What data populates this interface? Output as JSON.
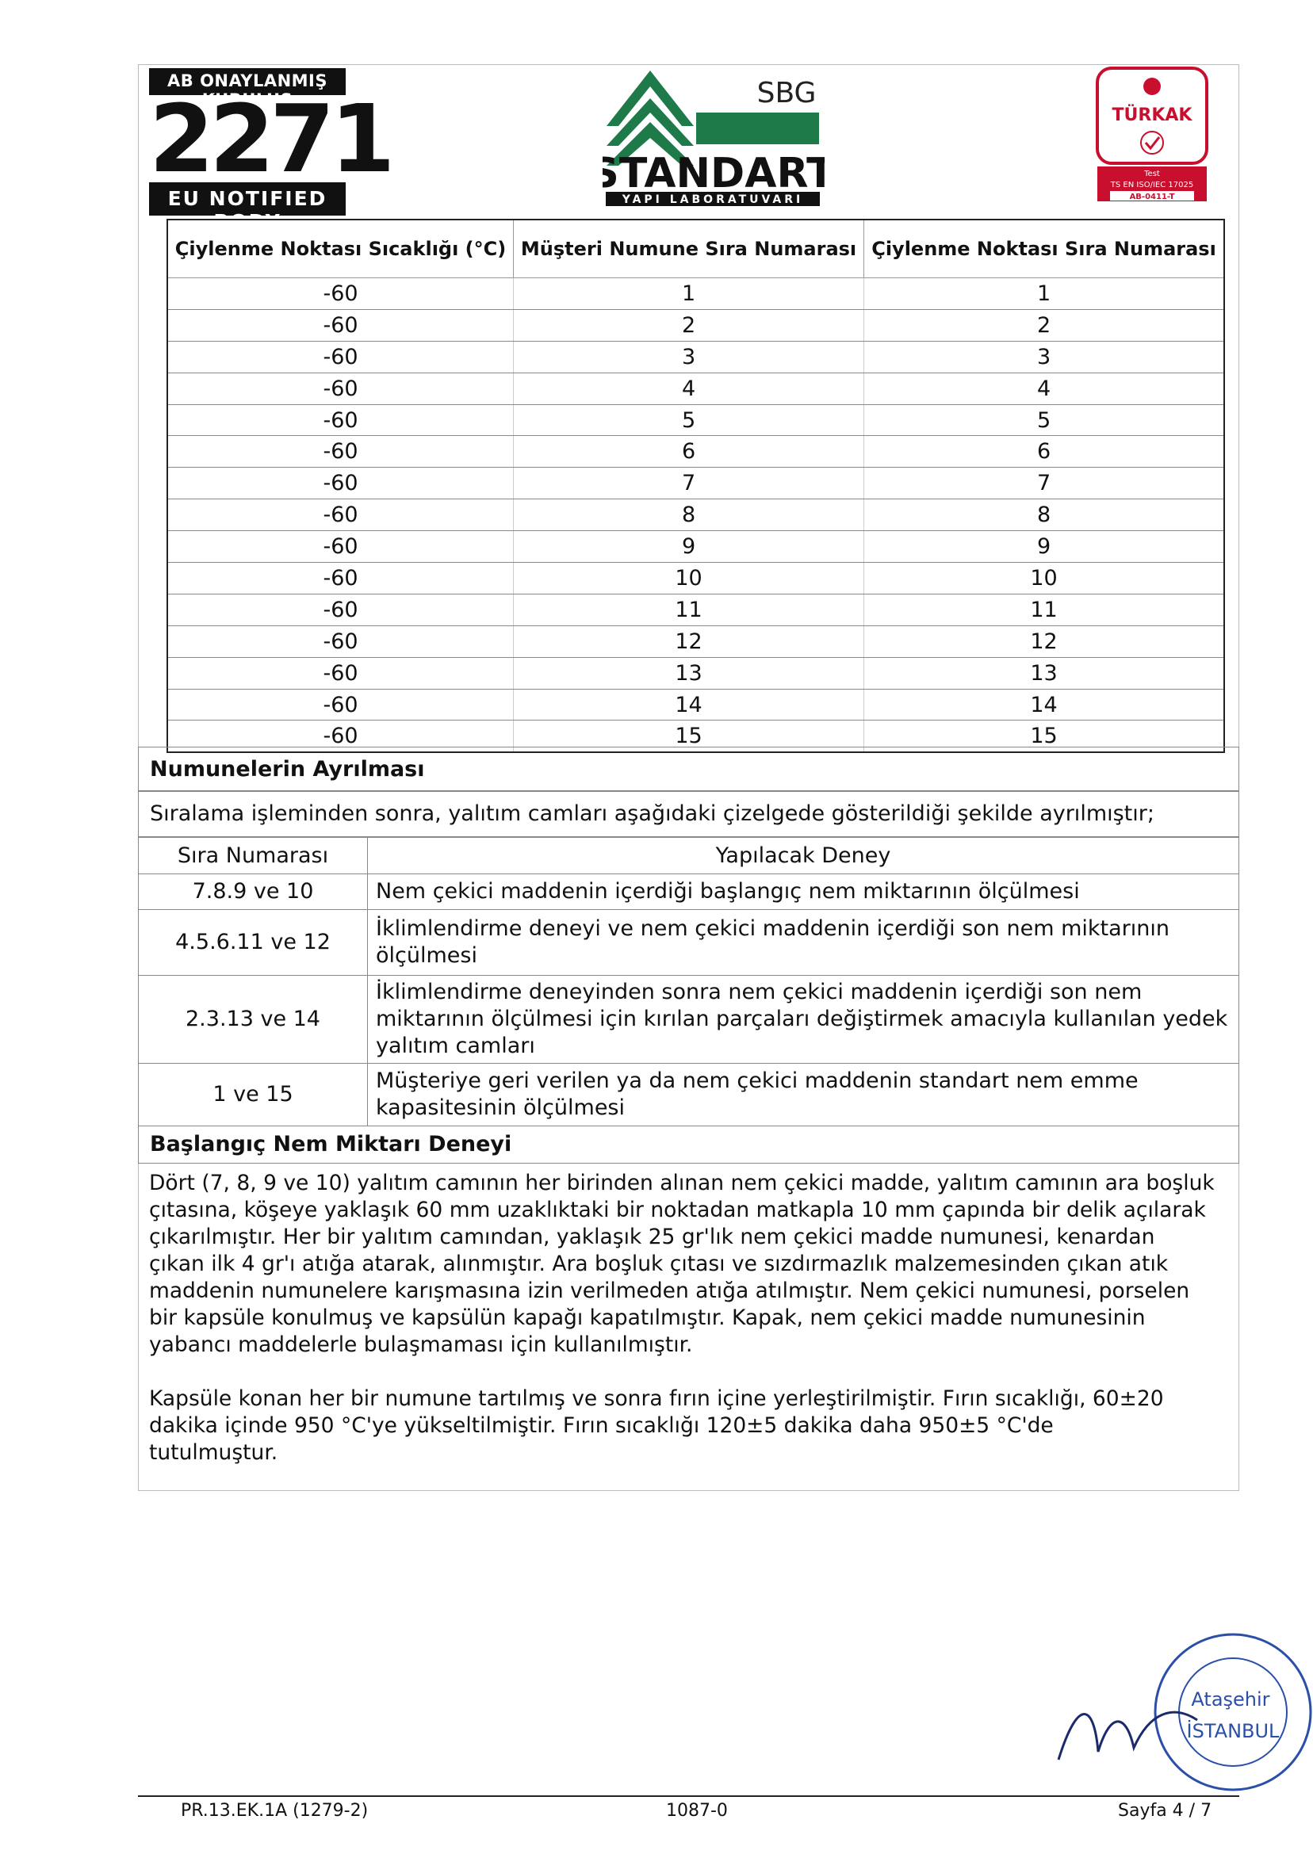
{
  "header": {
    "notified": {
      "top": "AB ONAYLANMIŞ KURULUŞ",
      "number": "2271",
      "bottom": "EU NOTIFIED BODY"
    },
    "lab": {
      "sbg": "SBG",
      "name": "STANDART",
      "sub": "YAPI LABORATUVARI"
    },
    "turkak": {
      "name": "TÜRKAK",
      "test": "Test",
      "standard": "TS EN ISO/IEC 17025",
      "code": "AB-0411-T"
    }
  },
  "table": {
    "headers": [
      "Çiylenme Noktası Sıcaklığı (°C)",
      "Müşteri Numune Sıra Numarası",
      "Çiylenme Noktası Sıra Numarası"
    ],
    "rows": [
      [
        "-60",
        "1",
        "1"
      ],
      [
        "-60",
        "2",
        "2"
      ],
      [
        "-60",
        "3",
        "3"
      ],
      [
        "-60",
        "4",
        "4"
      ],
      [
        "-60",
        "5",
        "5"
      ],
      [
        "-60",
        "6",
        "6"
      ],
      [
        "-60",
        "7",
        "7"
      ],
      [
        "-60",
        "8",
        "8"
      ],
      [
        "-60",
        "9",
        "9"
      ],
      [
        "-60",
        "10",
        "10"
      ],
      [
        "-60",
        "11",
        "11"
      ],
      [
        "-60",
        "12",
        "12"
      ],
      [
        "-60",
        "13",
        "13"
      ],
      [
        "-60",
        "14",
        "14"
      ],
      [
        "-60",
        "15",
        "15"
      ]
    ]
  },
  "separation": {
    "title": "Numunelerin Ayrılması",
    "intro": "Sıralama işleminden sonra, yalıtım camları aşağıdaki çizelgede gösterildiği şekilde ayrılmıştır;",
    "headers": [
      "Sıra Numarası",
      "Yapılacak Deney"
    ],
    "rows": [
      [
        "7.8.9 ve 10",
        "Nem çekici maddenin içerdiği başlangıç nem miktarının ölçülmesi"
      ],
      [
        "4.5.6.11 ve 12",
        "İklimlendirme deneyi ve nem çekici maddenin içerdiği son nem miktarının ölçülmesi"
      ],
      [
        "2.3.13 ve 14",
        "İklimlendirme deneyinden sonra nem çekici maddenin içerdiği son nem miktarının ölçülmesi için kırılan parçaları değiştirmek amacıyla kullanılan yedek yalıtım camları"
      ],
      [
        "1 ve 15",
        "Müşteriye geri verilen ya da nem çekici maddenin standart nem emme kapasitesinin ölçülmesi"
      ]
    ]
  },
  "moisture": {
    "title": "Başlangıç Nem Miktarı Deneyi",
    "paragraphs": [
      "Dört (7, 8, 9 ve 10) yalıtım camının her birinden alınan nem çekici madde, yalıtım camının ara boşluk çıtasına, köşeye yaklaşık 60 mm uzaklıktaki bir noktadan matkapla 10 mm çapında bir delik açılarak çıkarılmıştır. Her bir yalıtım camından, yaklaşık 25 gr'lık nem çekici madde numunesi, kenardan çıkan ilk 4 gr'ı atığa atarak, alınmıştır. Ara boşluk çıtası ve sızdırmazlık malzemesinden çıkan atık maddenin numunelere karışmasına izin verilmeden atığa atılmıştır. Nem çekici numunesi, porselen bir kapsüle konulmuş ve kapsülün kapağı kapatılmıştır. Kapak, nem çekici madde numunesinin yabancı maddelerle bulaşmaması için kullanılmıştır.",
      "Kapsüle konan her bir numune tartılmış ve sonra fırın içine yerleştirilmiştir. Fırın sıcaklığı, 60±20 dakika içinde 950 °C'ye yükseltilmiştir. Fırın sıcaklığı 120±5 dakika daha 950±5 °C'de tutulmuştur."
    ]
  },
  "stamp": {
    "city": "Ataşehir",
    "province": "İSTANBUL"
  },
  "footer": {
    "form": "PR.13.EK.1A (1279-2)",
    "code": "1087-0",
    "page": "Sayfa 4 / 7"
  }
}
